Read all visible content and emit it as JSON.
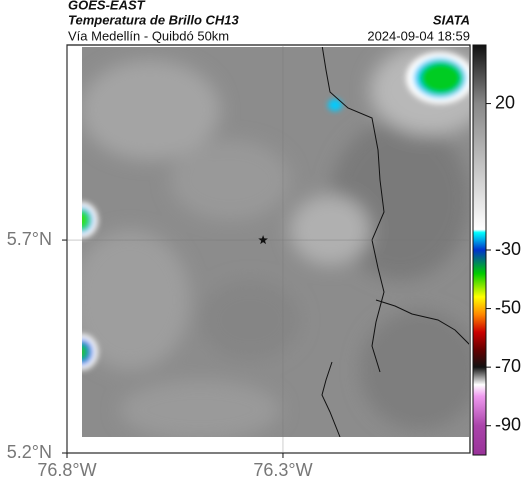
{
  "header": {
    "satellite": "GOES-EAST",
    "product": "Temperatura de Brillo CH13",
    "region": "Vía Medellín - Quibdó 50km",
    "source": "SIATA",
    "timestamp": "2024-09-04 18:59"
  },
  "map": {
    "xlim": [
      -76.8,
      -75.867
    ],
    "ylim": [
      5.2,
      6.158
    ],
    "xticks": [
      {
        "value": -76.8,
        "label": "76.8°W"
      },
      {
        "value": -76.3,
        "label": "76.3°W"
      }
    ],
    "yticks": [
      {
        "value": 5.2,
        "label": "5.2°N"
      },
      {
        "value": 5.7,
        "label": "5.7°N"
      }
    ],
    "grid": true,
    "marker": {
      "lon": -76.346,
      "lat": 5.7
    }
  },
  "colorbar": {
    "clim": [
      -100,
      40
    ],
    "ticks": [
      20,
      -30,
      -50,
      -70,
      -90
    ],
    "colormap": [
      {
        "value": 40,
        "color": "#111111"
      },
      {
        "value": 20,
        "color": "#888888"
      },
      {
        "value": -23,
        "color": "#ffffff"
      },
      {
        "value": -24,
        "color": "#00ffff"
      },
      {
        "value": -30,
        "color": "#0033cc"
      },
      {
        "value": -38,
        "color": "#00cc00"
      },
      {
        "value": -46,
        "color": "#ffff00"
      },
      {
        "value": -52,
        "color": "#ff8800"
      },
      {
        "value": -58,
        "color": "#cc0000"
      },
      {
        "value": -64,
        "color": "#660000"
      },
      {
        "value": -70,
        "color": "#111111"
      },
      {
        "value": -73,
        "color": "#888888"
      },
      {
        "value": -76,
        "color": "#ffffff"
      },
      {
        "value": -80,
        "color": "#ee99ee"
      },
      {
        "value": -90,
        "color": "#aa44aa"
      },
      {
        "value": -100,
        "color": "#993399"
      }
    ]
  }
}
